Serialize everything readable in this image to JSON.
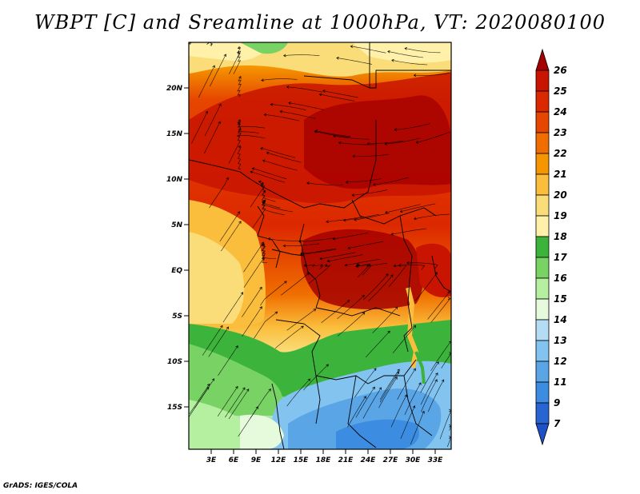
{
  "title": "WBPT [C] and Sreamline at 1000hPa, VT: 2020080100",
  "map": {
    "lat_labels": [
      "20N",
      "15N",
      "10N",
      "5N",
      "EQ",
      "5S",
      "10S",
      "15S"
    ],
    "lon_labels": [
      "3E",
      "6E",
      "9E",
      "12E",
      "15E",
      "18E",
      "21E",
      "24E",
      "27E",
      "30E",
      "33E"
    ],
    "lat_range": [
      -20,
      24.5
    ],
    "lon_range": [
      0,
      35
    ]
  },
  "colorbar": {
    "levels": [
      "26",
      "25",
      "24",
      "23",
      "22",
      "21",
      "20",
      "19",
      "18",
      "17",
      "16",
      "15",
      "14",
      "13",
      "12",
      "11",
      "9",
      "7"
    ],
    "colors": [
      "#a50000",
      "#c81400",
      "#dc2800",
      "#e64600",
      "#f06e00",
      "#f59600",
      "#fabe3c",
      "#fadc78",
      "#fff0aa",
      "#3cb43c",
      "#78d264",
      "#b4f0a0",
      "#e6fadc",
      "#b4dcf5",
      "#82c3f0",
      "#5aa5e6",
      "#3c8ce1",
      "#2864d2",
      "#1e50c8"
    ]
  },
  "footer": "GrADS: IGES/COLA"
}
